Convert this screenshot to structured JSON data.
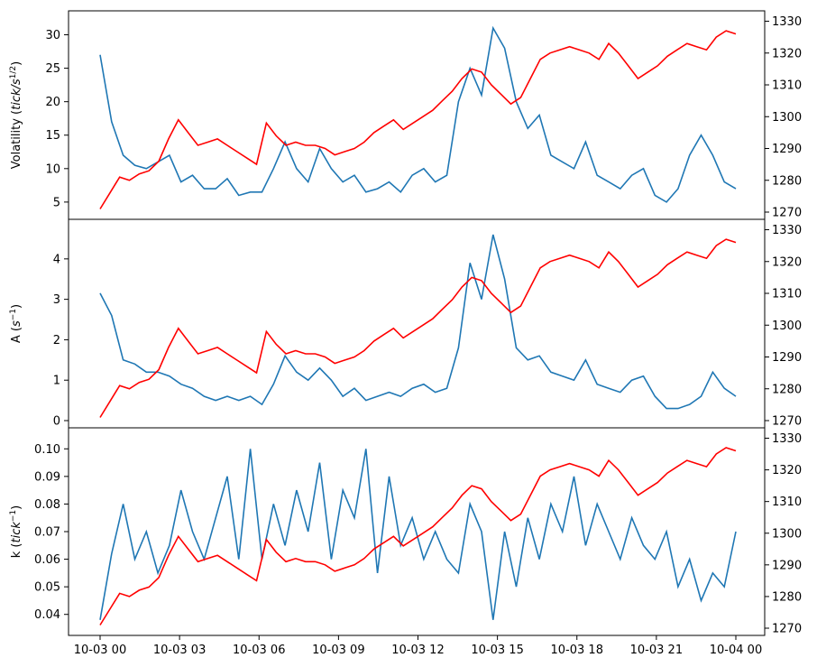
{
  "chart_data": {
    "type": "line",
    "x_range": [
      "10-03 00",
      "10-04 00"
    ],
    "x_tick_labels": [
      "10-03 00",
      "10-03 03",
      "10-03 06",
      "10-03 09",
      "10-03 12",
      "10-03 15",
      "10-03 18",
      "10-03 21",
      "10-04 00"
    ],
    "x_hours": [
      0,
      0.25,
      0.5,
      0.75,
      1,
      1.25,
      1.5,
      2,
      2.5,
      3,
      3.5,
      4,
      4.5,
      5,
      5.5,
      6,
      6.5,
      7,
      7.5,
      8,
      8.5,
      9,
      9.5,
      10,
      10.5,
      11,
      11.5,
      12,
      12.5,
      13,
      13.25,
      13.5,
      13.75,
      14,
      14.25,
      14.5,
      14.75,
      15,
      15.5,
      16,
      16.5,
      17,
      17.5,
      18,
      18.5,
      19,
      19.5,
      20,
      20.5,
      21,
      21.5,
      22,
      22.5,
      23,
      23.5,
      24
    ],
    "price_series": {
      "color": "#ff0000",
      "right_axis_ticks": [
        1270,
        1280,
        1290,
        1300,
        1310,
        1320,
        1330
      ],
      "right_ylim": [
        1270,
        1331
      ],
      "values": [
        1271,
        1276,
        1281,
        1280,
        1282,
        1283,
        1286,
        1293,
        1299,
        1295,
        1291,
        1292,
        1293,
        1291,
        1289,
        1287,
        1285,
        1298,
        1294,
        1291,
        1292,
        1291,
        1291,
        1290,
        1288,
        1289,
        1290,
        1292,
        1295,
        1297,
        1299,
        1296,
        1298,
        1300,
        1302,
        1305,
        1308,
        1312,
        1315,
        1314,
        1310,
        1307,
        1304,
        1306,
        1312,
        1318,
        1320,
        1321,
        1322,
        1321,
        1320,
        1318,
        1323,
        1320,
        1316,
        1312,
        1314,
        1316,
        1319,
        1321,
        1323,
        1322,
        1321,
        1325,
        1327,
        1326
      ]
    },
    "panels": [
      {
        "ylabel": "Volatility (tick/s^{1/2})",
        "ylabel_main": "Volatility (",
        "ylabel_italic": "tick",
        "ylabel_tail": "/",
        "ylabel_s": "s",
        "ylabel_sup": "1/2",
        "ylabel_close": ")",
        "ylim": [
          3.5,
          32.5
        ],
        "yticks": [
          5,
          10,
          15,
          20,
          25,
          30
        ],
        "series_color": "#1f77b4",
        "values": [
          27,
          17,
          12,
          10.5,
          10,
          11,
          12,
          8,
          9,
          7,
          7,
          8.5,
          6,
          6.5,
          6.5,
          10,
          14,
          10,
          8,
          13,
          10,
          8,
          9,
          6.5,
          7,
          8,
          6.5,
          9,
          10,
          8,
          9,
          20,
          25,
          21,
          31,
          28,
          20,
          16,
          18,
          12,
          11,
          10,
          14,
          9,
          8,
          7,
          9,
          10,
          6,
          5,
          7,
          12,
          15,
          12,
          8,
          7
        ]
      },
      {
        "ylabel_main": "A (",
        "ylabel_s": "s",
        "ylabel_sup": "−1",
        "ylabel_close": ")",
        "ylim": [
          0,
          4.8
        ],
        "yticks": [
          0,
          1,
          2,
          3,
          4
        ],
        "series_color": "#1f77b4",
        "values": [
          3.15,
          2.6,
          1.5,
          1.4,
          1.2,
          1.2,
          1.1,
          0.9,
          0.8,
          0.6,
          0.5,
          0.6,
          0.5,
          0.6,
          0.4,
          0.9,
          1.6,
          1.2,
          1.0,
          1.3,
          1.0,
          0.6,
          0.8,
          0.5,
          0.6,
          0.7,
          0.6,
          0.8,
          0.9,
          0.7,
          0.8,
          1.8,
          3.9,
          3.0,
          4.6,
          3.5,
          1.8,
          1.5,
          1.6,
          1.2,
          1.1,
          1.0,
          1.5,
          0.9,
          0.8,
          0.7,
          1.0,
          1.1,
          0.6,
          0.3,
          0.3,
          0.4,
          0.6,
          1.2,
          0.8,
          0.6
        ]
      },
      {
        "ylabel_main": "k (",
        "ylabel_italic": "tick",
        "ylabel_sup": "−1",
        "ylabel_close": ")",
        "ylim": [
          0.035,
          0.105
        ],
        "yticks": [
          0.04,
          0.05,
          0.06,
          0.07,
          0.08,
          0.09,
          0.1
        ],
        "ytick_labels": [
          "0.04",
          "0.05",
          "0.06",
          "0.07",
          "0.08",
          "0.09",
          "0.10"
        ],
        "series_color": "#1f77b4",
        "values": [
          0.038,
          0.062,
          0.08,
          0.06,
          0.07,
          0.055,
          0.065,
          0.085,
          0.07,
          0.06,
          0.075,
          0.09,
          0.06,
          0.1,
          0.06,
          0.08,
          0.065,
          0.085,
          0.07,
          0.095,
          0.06,
          0.085,
          0.075,
          0.1,
          0.055,
          0.09,
          0.065,
          0.075,
          0.06,
          0.07,
          0.06,
          0.055,
          0.08,
          0.07,
          0.038,
          0.07,
          0.05,
          0.075,
          0.06,
          0.08,
          0.07,
          0.09,
          0.065,
          0.08,
          0.07,
          0.06,
          0.075,
          0.065,
          0.06,
          0.07,
          0.05,
          0.06,
          0.045,
          0.055,
          0.05,
          0.07
        ]
      }
    ]
  }
}
